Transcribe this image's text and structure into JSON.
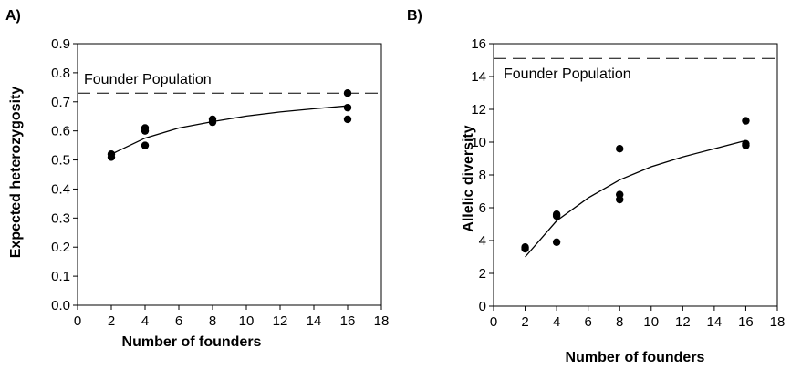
{
  "chart_data": [
    {
      "type": "scatter",
      "panel_label": "A)",
      "xlabel": "Number of founders",
      "ylabel": "Expected heterozygosity",
      "xlim": [
        0,
        18
      ],
      "ylim": [
        0.0,
        0.9
      ],
      "xticks": [
        "0",
        "2",
        "4",
        "6",
        "8",
        "10",
        "12",
        "14",
        "16",
        "18"
      ],
      "yticks": [
        "0.0",
        "0.1",
        "0.2",
        "0.3",
        "0.4",
        "0.5",
        "0.6",
        "0.7",
        "0.8",
        "0.9"
      ],
      "grid": false,
      "points": [
        {
          "x": 2,
          "y": 0.51
        },
        {
          "x": 2,
          "y": 0.52
        },
        {
          "x": 4,
          "y": 0.55
        },
        {
          "x": 4,
          "y": 0.6
        },
        {
          "x": 4,
          "y": 0.61
        },
        {
          "x": 8,
          "y": 0.63
        },
        {
          "x": 8,
          "y": 0.64
        },
        {
          "x": 16,
          "y": 0.64
        },
        {
          "x": 16,
          "y": 0.68
        },
        {
          "x": 16,
          "y": 0.73
        }
      ],
      "fit_curve": [
        {
          "x": 2,
          "y": 0.52
        },
        {
          "x": 4,
          "y": 0.575
        },
        {
          "x": 6,
          "y": 0.61
        },
        {
          "x": 8,
          "y": 0.632
        },
        {
          "x": 10,
          "y": 0.651
        },
        {
          "x": 12,
          "y": 0.665
        },
        {
          "x": 14,
          "y": 0.676
        },
        {
          "x": 16,
          "y": 0.686
        }
      ],
      "reference_line": {
        "label": "Founder Population",
        "y": 0.73,
        "style": "dashed"
      }
    },
    {
      "type": "scatter",
      "panel_label": "B)",
      "xlabel": "Number of founders",
      "ylabel": "Allelic diversity",
      "xlim": [
        0,
        18
      ],
      "ylim": [
        0,
        16
      ],
      "xticks": [
        "0",
        "2",
        "4",
        "6",
        "8",
        "10",
        "12",
        "14",
        "16",
        "18"
      ],
      "yticks": [
        "0",
        "2",
        "4",
        "6",
        "8",
        "10",
        "12",
        "14",
        "16"
      ],
      "grid": false,
      "points": [
        {
          "x": 2,
          "y": 3.5
        },
        {
          "x": 2,
          "y": 3.6
        },
        {
          "x": 4,
          "y": 3.9
        },
        {
          "x": 4,
          "y": 5.5
        },
        {
          "x": 4,
          "y": 5.6
        },
        {
          "x": 8,
          "y": 6.5
        },
        {
          "x": 8,
          "y": 6.8
        },
        {
          "x": 8,
          "y": 9.6
        },
        {
          "x": 16,
          "y": 9.8
        },
        {
          "x": 16,
          "y": 9.9
        },
        {
          "x": 16,
          "y": 11.3
        }
      ],
      "fit_curve": [
        {
          "x": 2,
          "y": 3.0
        },
        {
          "x": 4,
          "y": 5.2
        },
        {
          "x": 6,
          "y": 6.6
        },
        {
          "x": 8,
          "y": 7.7
        },
        {
          "x": 10,
          "y": 8.5
        },
        {
          "x": 12,
          "y": 9.1
        },
        {
          "x": 14,
          "y": 9.6
        },
        {
          "x": 16,
          "y": 10.1
        }
      ],
      "reference_line": {
        "label": "Founder Population",
        "y": 15.1,
        "style": "dashed"
      }
    }
  ]
}
